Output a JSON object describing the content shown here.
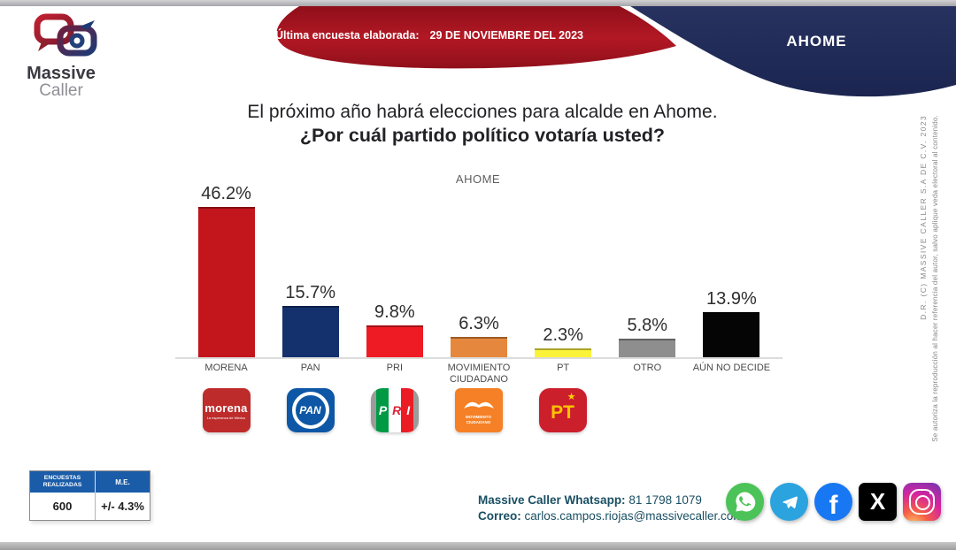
{
  "header": {
    "logo_line1": "Massive",
    "logo_line2": "Caller",
    "banner_label": "Última encuesta elaborada:",
    "banner_date": "29 DE NOVIEMBRE DEL 2023",
    "region": "AHOME"
  },
  "title_line1": "El próximo año habrá elecciones para alcalde en Ahome.",
  "title_line2": "¿Por cuál partido político votaría usted?",
  "chart_data": {
    "type": "bar",
    "title": "AHOME",
    "categories": [
      "MORENA",
      "PAN",
      "PRI",
      "MOVIMIENTO CIUDADANO",
      "PT",
      "OTRO",
      "AÚN NO DECIDE"
    ],
    "values": [
      46.2,
      15.7,
      9.8,
      6.3,
      2.3,
      5.8,
      13.9
    ],
    "value_labels": [
      "46.2%",
      "15.7%",
      "9.8%",
      "6.3%",
      "2.3%",
      "5.8%",
      "13.9%"
    ],
    "bar_colors": [
      "#C3151C",
      "#14316E",
      "#EF1B24",
      "#E5883D",
      "#FBF23A",
      "#8E8E8E",
      "#050505"
    ],
    "ylim": [
      0,
      50
    ],
    "grid": false,
    "legend": false,
    "value_label_position": "above-bar"
  },
  "party_logos": [
    {
      "name": "morena",
      "label": "morena",
      "tagline": "La esperanza de México",
      "color": "#BE2B2B"
    },
    {
      "name": "pan",
      "label": "PAN",
      "color": "#0D57A6"
    },
    {
      "name": "pri",
      "label": "PRI",
      "letters": [
        "P",
        "R",
        "I"
      ],
      "colors": [
        "#009A44",
        "#FFFFFF",
        "#EC1C24"
      ]
    },
    {
      "name": "movimiento-ciudadano",
      "label": "MOVIMIENTO CIUDADANO",
      "color": "#F58025"
    },
    {
      "name": "pt",
      "label": "PT",
      "color": "#CC1F2C"
    }
  ],
  "stats_table": {
    "col1_header": "ENCUESTAS REALIZADAS",
    "col2_header": "M.E.",
    "col1_value": "600",
    "col2_value": "+/- 4.3%"
  },
  "contact": {
    "whatsapp_label": "Massive Caller Whatsapp:",
    "whatsapp_number": "81 1798 1079",
    "email_label": "Correo:",
    "email": "carlos.campos.riojas@massivecaller.com"
  },
  "social_icons": [
    "whatsapp-icon",
    "telegram-icon",
    "facebook-icon",
    "x-icon",
    "instagram-icon"
  ],
  "copyright_line1": "D.R.  (C) MASSIVE CALLER S.A DE C.V.  2023",
  "copyright_line2": "Se autoriza la reproducción al hacer referencia del autor, salvo aplique veda electoral al contenido.",
  "colors": {
    "banner_red": "#A8131F",
    "region_navy": "#1F2C5C",
    "table_header_blue": "#1A5CA8",
    "contact_text": "#1A4F63",
    "chart_baseline": "#DCDCDC"
  }
}
